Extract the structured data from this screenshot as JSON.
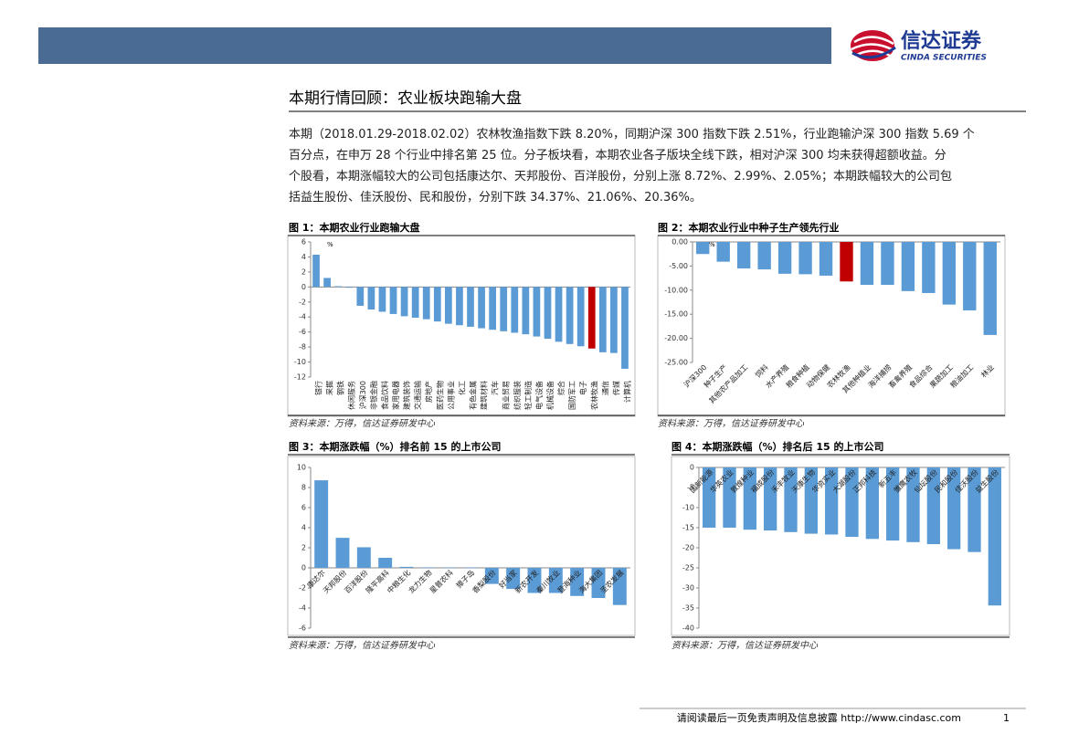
{
  "header": {
    "logo_cn": "信达证券",
    "logo_en": "CINDA SECURITIES"
  },
  "title": "本期行情回顾：农业板块跑输大盘",
  "paragraph": [
    "本期（2018.01.29-2018.02.02）农林牧渔指数下跌 8.20%，同期沪深 300 指数下跌 2.51%，行业跑输沪深 300 指数 5.69 个",
    "百分点，在申万 28 个行业中排名第 25 位。分子板块看，本期农业各子版块全线下跌，相对沪深 300 均未获得超额收益。分",
    "个股看，本期涨幅较大的公司包括康达尔、天邦股份、百洋股份，分别上涨 8.72%、2.99%、2.05%；本期跌幅较大的公司包",
    "括益生股份、佳沃股份、民和股份，分别下跌 34.37%、21.06%、20.36%。"
  ],
  "chart_data": [
    {
      "type": "bar",
      "title": "图 1：本期农业行业跑输大盘",
      "unit": "%",
      "source": "资料来源：万得，信达证券研发中心",
      "categories": [
        "银行",
        "采掘",
        "钢铁",
        "休闲服务",
        "沪深300",
        "非银金融",
        "食品饮料",
        "家用电器",
        "建筑装饰",
        "交通运输",
        "房地产",
        "医药生物",
        "公用事业",
        "化工",
        "有色金属",
        "建筑材料",
        "汽车",
        "商业贸易",
        "纺织服装",
        "轻工制造",
        "电气设备",
        "机械设备",
        "综合",
        "国防军工",
        "电子",
        "农林牧渔",
        "通信",
        "传媒",
        "计算机"
      ],
      "values": [
        4.3,
        1.2,
        0.1,
        -0.1,
        -2.51,
        -3.0,
        -3.3,
        -3.6,
        -3.9,
        -4.1,
        -4.3,
        -4.6,
        -4.9,
        -5.1,
        -5.3,
        -5.5,
        -5.7,
        -5.9,
        -6.1,
        -6.3,
        -6.6,
        -6.9,
        -7.3,
        -7.6,
        -7.9,
        -8.2,
        -8.7,
        -8.8,
        -10.9
      ],
      "color": "#5b9bd5",
      "highlight_category": "农林牧渔",
      "highlight_color": "#c00000",
      "ylim": [
        -12,
        6
      ],
      "yticks": [
        6,
        4,
        2,
        0,
        -2,
        -4,
        -6,
        -8,
        -10,
        -12
      ]
    },
    {
      "type": "bar",
      "title": "图 2：本期农业行业中种子生产领先行业",
      "unit": "%",
      "source": "资料来源：万得，信达证券研发中心",
      "categories": [
        "沪深300",
        "种子生产",
        "其他农产品加工",
        "饲料",
        "水产养殖",
        "粮食种植",
        "动物保健",
        "农林牧渔",
        "其他种植业",
        "海洋捕捞",
        "畜禽养殖",
        "食品综合",
        "果蔬加工",
        "粮油加工",
        "林业"
      ],
      "values": [
        -2.51,
        -4.1,
        -5.5,
        -5.7,
        -6.6,
        -6.7,
        -7.0,
        -8.2,
        -8.9,
        -8.9,
        -10.2,
        -10.6,
        -13.0,
        -14.2,
        -19.3
      ],
      "color": "#5b9bd5",
      "highlight_category": "农林牧渔",
      "highlight_color": "#c00000",
      "ylim": [
        -25,
        0
      ],
      "yticks": [
        {
          "value": 0,
          "label": "0.00"
        },
        {
          "value": -5,
          "label": "-5.00"
        },
        {
          "value": -10,
          "label": "-10.00"
        },
        {
          "value": -15,
          "label": "-15.00"
        },
        {
          "value": -20,
          "label": "-20.00"
        },
        {
          "value": -25,
          "label": "-25.00"
        }
      ]
    },
    {
      "type": "bar",
      "title": "图 3：本期涨跌幅（%）排名前 15 的上市公司",
      "source": "资料来源：万得，信达证券研发中心",
      "categories": [
        "康达尔",
        "天邦股份",
        "百洋股份",
        "隆平高科",
        "中粮生化",
        "龙力生物",
        "星普农科",
        "獐子岛",
        "香梨股份",
        "好当家",
        "新农开发",
        "秦川牧业",
        "登海种业",
        "海大集团",
        "圣农发展"
      ],
      "values": [
        8.72,
        2.99,
        2.05,
        1.0,
        0.1,
        0.05,
        0.03,
        0.02,
        -1.6,
        -2.1,
        -2.5,
        -2.5,
        -2.8,
        -3.0,
        -3.7
      ],
      "color": "#5b9bd5",
      "ylim": [
        -6,
        10
      ],
      "yticks": [
        10,
        8,
        6,
        4,
        2,
        0,
        -2,
        -4,
        -6
      ]
    },
    {
      "type": "bar",
      "title": "图 4：本期涨跌幅（%）排名后 15 的上市公司",
      "source": "资料来源：万得，信达证券研发中心",
      "categories": [
        "国新能源",
        "华英农业",
        "敦煌种业",
        "福成股份",
        "禾丰牧业",
        "天康生物",
        "华资实业",
        "大湖股份",
        "正邦科技",
        "新五丰",
        "雏鹰农牧",
        "仙坛股份",
        "民和股份",
        "佳沃股份",
        "益生股份"
      ],
      "values": [
        -15.0,
        -15.0,
        -15.5,
        -15.7,
        -16.1,
        -16.5,
        -16.7,
        -17.3,
        -17.8,
        -18.2,
        -18.6,
        -19.1,
        -20.36,
        -21.06,
        -34.37
      ],
      "color": "#5b9bd5",
      "ylim": [
        -40,
        0
      ],
      "yticks": [
        0,
        -5,
        -10,
        -15,
        -20,
        -25,
        -30,
        -35,
        -40
      ]
    }
  ],
  "footer": {
    "note": "请阅读最后一页免责声明及信息披露 http://www.cindasc.com",
    "page": "1"
  }
}
